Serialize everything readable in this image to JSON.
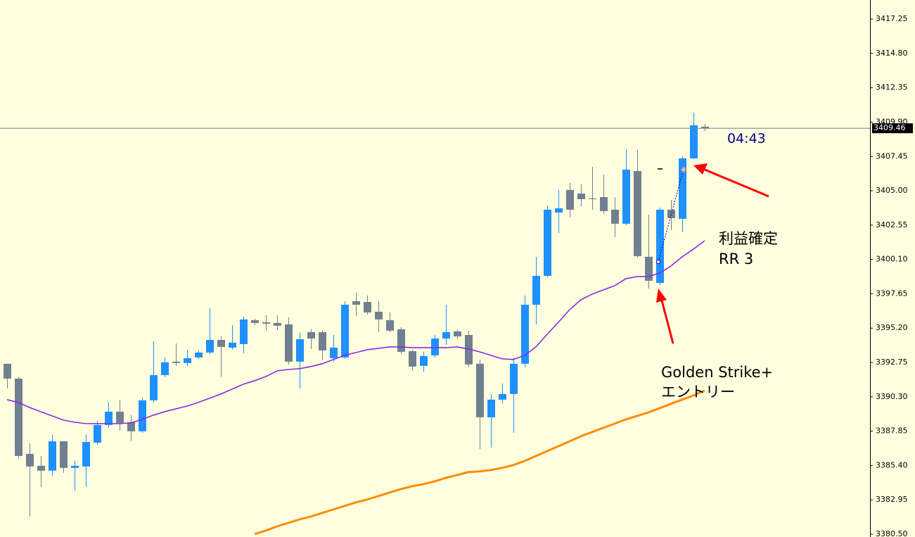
{
  "chart_data": {
    "type": "candlestick",
    "up_color": "#1e90ff",
    "down_color": "#708090",
    "ylim": [
      3380.3,
      3418.61
    ],
    "yticks": [
      {
        "value": 3417.25,
        "label": "3417.25"
      },
      {
        "value": 3414.8,
        "label": "3414.80"
      },
      {
        "value": 3412.35,
        "label": "3412.35"
      },
      {
        "value": 3409.9,
        "label": "3409.90"
      },
      {
        "value": 3407.45,
        "label": "3407.45"
      },
      {
        "value": 3405.0,
        "label": "3405.00"
      },
      {
        "value": 3402.55,
        "label": "3402.55"
      },
      {
        "value": 3400.1,
        "label": "3400.10"
      },
      {
        "value": 3397.65,
        "label": "3397.65"
      },
      {
        "value": 3395.2,
        "label": "3395.20"
      },
      {
        "value": 3392.75,
        "label": "3392.75"
      },
      {
        "value": 3390.3,
        "label": "3390.30"
      },
      {
        "value": 3387.85,
        "label": "3387.85"
      },
      {
        "value": 3385.4,
        "label": "3385.40"
      },
      {
        "value": 3382.95,
        "label": "3382.95"
      },
      {
        "value": 3380.5,
        "label": "3380.50"
      }
    ],
    "open": [
      3392.66,
      3391.6,
      3386.23,
      3385.38,
      3385.03,
      3387.13,
      3385.23,
      3385.33,
      3387.03,
      3388.29,
      3389.24,
      3388.49,
      3387.84,
      3390.05,
      3391.85,
      3392.81,
      3392.71,
      3393.11,
      3393.46,
      3394.36,
      3393.81,
      3394.06,
      3395.77,
      3395.62,
      3395.57,
      3395.47,
      3392.81,
      3394.92,
      3394.92,
      3393.06,
      3393.11,
      3397.12,
      3397.07,
      3396.37,
      3395.77,
      3395.12,
      3393.56,
      3392.51,
      3393.26,
      3394.46,
      3394.97,
      3394.71,
      3392.66,
      3388.84,
      3390.1,
      3390.5,
      3392.66,
      3396.87,
      3398.93,
      3403.45,
      3405.06,
      3404.8,
      3404.45,
      3404.55,
      3403.65,
      3402.65,
      3406.41,
      3400.29,
      3398.43,
      3403.65,
      3403.0,
      3407.31,
      3409.57
    ],
    "high": [
      3392.66,
      3391.7,
      3386.98,
      3386.08,
      3387.59,
      3387.13,
      3385.73,
      3387.59,
      3388.59,
      3389.9,
      3390.1,
      3388.99,
      3390.25,
      3394.26,
      3393.11,
      3394.11,
      3393.66,
      3393.61,
      3396.62,
      3394.61,
      3395.42,
      3396.02,
      3395.87,
      3396.12,
      3396.12,
      3395.97,
      3394.87,
      3395.12,
      3395.07,
      3394.71,
      3397.12,
      3397.73,
      3397.53,
      3397.12,
      3396.32,
      3395.27,
      3393.66,
      3393.51,
      3394.71,
      3396.87,
      3395.12,
      3395.02,
      3392.96,
      3390.5,
      3391.25,
      3393.11,
      3397.53,
      3400.29,
      3403.95,
      3405.06,
      3405.56,
      3405.46,
      3406.71,
      3406.16,
      3404.55,
      3407.97,
      3407.92,
      3403.3,
      3403.8,
      3404.35,
      3407.47,
      3410.58,
      3409.77
    ],
    "low": [
      3390.9,
      3385.88,
      3381.76,
      3383.87,
      3384.67,
      3384.88,
      3383.62,
      3383.87,
      3386.88,
      3388.09,
      3387.89,
      3387.13,
      3387.74,
      3389.9,
      3391.7,
      3392.51,
      3392.51,
      3393.01,
      3393.36,
      3391.75,
      3393.66,
      3393.41,
      3395.42,
      3395.02,
      3395.07,
      3392.61,
      3390.9,
      3393.71,
      3392.91,
      3392.81,
      3393.01,
      3396.07,
      3396.17,
      3394.92,
      3394.92,
      3393.36,
      3392.15,
      3392.1,
      3393.11,
      3394.01,
      3394.41,
      3392.41,
      3386.58,
      3386.68,
      3389.85,
      3387.74,
      3392.41,
      3395.47,
      3398.83,
      3401.99,
      3403.1,
      3403.9,
      3403.65,
      3403.35,
      3401.69,
      3402.55,
      3400.24,
      3398.03,
      3398.28,
      3402.19,
      3402.04,
      3407.26,
      3409.27
    ],
    "close": [
      3391.6,
      3386.08,
      3385.33,
      3385.03,
      3387.13,
      3385.23,
      3385.38,
      3387.08,
      3388.29,
      3389.24,
      3388.44,
      3387.84,
      3390.05,
      3391.85,
      3392.76,
      3392.71,
      3393.06,
      3393.46,
      3394.36,
      3393.86,
      3394.16,
      3395.82,
      3395.57,
      3395.52,
      3395.37,
      3392.81,
      3394.41,
      3394.46,
      3393.61,
      3393.81,
      3396.87,
      3396.87,
      3396.32,
      3395.82,
      3395.02,
      3393.51,
      3392.46,
      3393.21,
      3394.46,
      3394.92,
      3394.61,
      3392.61,
      3388.84,
      3390.1,
      3390.5,
      3392.66,
      3396.87,
      3398.93,
      3403.65,
      3403.75,
      3403.65,
      3404.4,
      3404.4,
      3403.55,
      3402.65,
      3406.51,
      3400.34,
      3398.58,
      3403.65,
      3403.05,
      3407.31,
      3409.67,
      3409.46
    ],
    "lines": [
      {
        "color": "#8a2be2",
        "values": [
          3390.1,
          3389.9,
          3389.54,
          3389.24,
          3388.94,
          3388.64,
          3388.49,
          3388.39,
          3388.39,
          3388.39,
          3388.39,
          3388.44,
          3388.69,
          3388.99,
          3389.24,
          3389.44,
          3389.64,
          3389.9,
          3390.2,
          3390.5,
          3390.85,
          3391.2,
          3391.45,
          3391.75,
          3392.15,
          3392.25,
          3392.31,
          3392.46,
          3392.66,
          3392.96,
          3393.26,
          3393.46,
          3393.66,
          3393.76,
          3393.86,
          3393.86,
          3393.81,
          3393.81,
          3393.81,
          3393.81,
          3393.86,
          3393.71,
          3393.51,
          3393.26,
          3393.01,
          3392.96,
          3393.26,
          3393.86,
          3394.76,
          3395.62,
          3396.52,
          3397.22,
          3397.63,
          3397.93,
          3398.23,
          3398.73,
          3398.88,
          3398.88,
          3399.13,
          3399.63,
          3400.29,
          3400.84,
          3401.44
        ]
      },
      {
        "color": "#ff8c00",
        "values": [
          null,
          null,
          null,
          null,
          null,
          null,
          null,
          null,
          null,
          null,
          null,
          null,
          null,
          null,
          null,
          null,
          null,
          null,
          null,
          null,
          null,
          null,
          3380.51,
          3380.76,
          3381.06,
          3381.31,
          3381.56,
          3381.76,
          3382.01,
          3382.27,
          3382.52,
          3382.77,
          3382.97,
          3383.22,
          3383.47,
          3383.72,
          3383.92,
          3384.07,
          3384.27,
          3384.52,
          3384.72,
          3384.93,
          3384.98,
          3385.08,
          3385.23,
          3385.43,
          3385.73,
          3386.08,
          3386.43,
          3386.78,
          3387.13,
          3387.49,
          3387.79,
          3388.09,
          3388.39,
          3388.69,
          3388.94,
          3389.19,
          3389.49,
          3389.8,
          3390.1,
          3390.4,
          3390.75
        ]
      }
    ],
    "current_price": 3409.46,
    "timer": "04:43",
    "annotations": [
      "利益確定",
      "RR 3",
      "Golden Strike+",
      "エントリー"
    ]
  }
}
